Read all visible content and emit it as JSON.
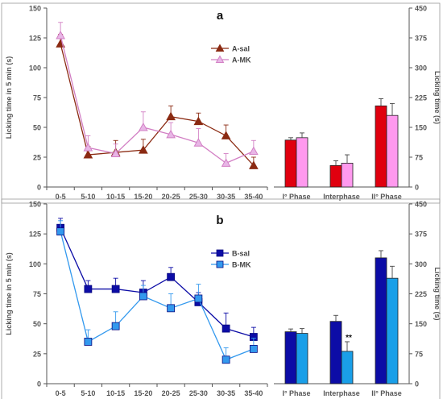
{
  "chart_data": [
    {
      "panel": "a",
      "type": "line",
      "categories": [
        "0-5",
        "5-10",
        "10-15",
        "15-20",
        "20-25",
        "25-30",
        "30-35",
        "35-40"
      ],
      "ylabel": "Licking time in 5 min (s)",
      "ylim": [
        0,
        150
      ],
      "yticks": [
        0,
        25,
        50,
        75,
        100,
        125,
        150
      ],
      "legend": "top-right",
      "series": [
        {
          "name": "A-sal",
          "color": "#8b2a12",
          "marker": "triangle",
          "values": [
            120,
            27,
            29,
            31,
            59,
            55,
            43,
            18
          ],
          "errors": [
            8,
            7,
            10,
            9,
            9,
            7,
            9,
            7
          ]
        },
        {
          "name": "A-MK",
          "color": "#d27fc4",
          "marker": "triangle",
          "values": [
            127,
            33,
            28,
            50,
            44,
            37,
            20,
            30
          ],
          "errors": [
            11,
            10,
            8,
            13,
            10,
            12,
            8,
            9
          ]
        }
      ]
    },
    {
      "panel": "a",
      "type": "bar",
      "categories": [
        "I° Phase",
        "Interphase",
        "II° Phase"
      ],
      "ylabel": "Licking time (s)",
      "ylim": [
        0,
        450
      ],
      "yticks": [
        0,
        75,
        150,
        225,
        300,
        375,
        450
      ],
      "series": [
        {
          "name": "A-sal",
          "color": "#e0000f",
          "values": [
            118,
            54,
            204
          ],
          "errors": [
            6,
            12,
            18
          ]
        },
        {
          "name": "A-MK",
          "color": "#ff99ee",
          "values": [
            124,
            60,
            180
          ],
          "errors": [
            12,
            21,
            30
          ]
        }
      ]
    },
    {
      "panel": "b",
      "type": "line",
      "categories": [
        "0-5",
        "5-10",
        "10-15",
        "15-20",
        "20-25",
        "25-30",
        "30-35",
        "35-40"
      ],
      "ylabel": "Licking time in 5 min (s)",
      "ylim": [
        0,
        150
      ],
      "yticks": [
        0,
        25,
        50,
        75,
        100,
        125,
        150
      ],
      "legend": "top-right",
      "series": [
        {
          "name": "B-sal",
          "color": "#0c0ca6",
          "marker": "square",
          "values": [
            130,
            79,
            79,
            76,
            89,
            68,
            46,
            39
          ],
          "errors": [
            8,
            7,
            9,
            10,
            8,
            8,
            13,
            8
          ]
        },
        {
          "name": "B-MK",
          "color": "#3399ee",
          "marker": "square",
          "values": [
            127,
            35,
            48,
            73,
            63,
            71,
            20,
            29
          ],
          "errors": [
            9,
            10,
            12,
            9,
            12,
            12,
            10,
            9
          ]
        }
      ]
    },
    {
      "panel": "b",
      "type": "bar",
      "categories": [
        "I° Phase",
        "Interphase",
        "II° Phase"
      ],
      "ylabel": "Licking time (s)",
      "ylim": [
        0,
        450
      ],
      "yticks": [
        0,
        75,
        150,
        225,
        300,
        375,
        450
      ],
      "series": [
        {
          "name": "B-sal",
          "color": "#0c0ca6",
          "values": [
            130,
            156,
            315
          ],
          "errors": [
            7,
            15,
            18
          ]
        },
        {
          "name": "B-MK",
          "color": "#1a9fe8",
          "values": [
            126,
            81,
            264
          ],
          "errors": [
            12,
            24,
            30
          ]
        }
      ],
      "annotations": [
        {
          "category": "Interphase",
          "series": "B-MK",
          "text": "**"
        }
      ]
    }
  ],
  "panel_labels": [
    "a",
    "b"
  ]
}
